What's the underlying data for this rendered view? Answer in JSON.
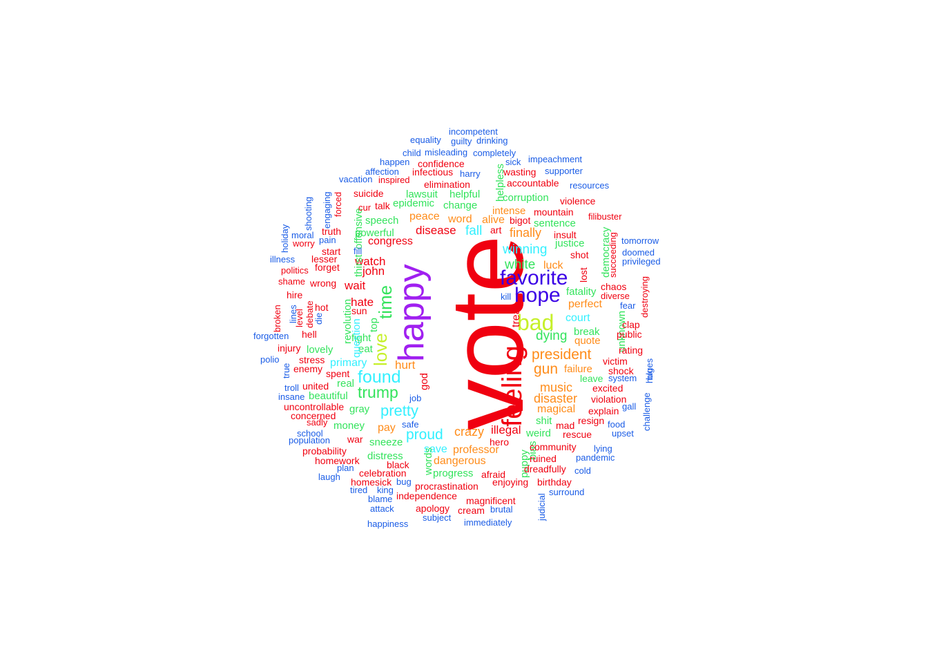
{
  "palette": {
    "red": "#f00010",
    "blue": "#1a5ce6",
    "green": "#33e35c",
    "orange": "#ff8c1a",
    "cyan": "#33f0ff",
    "purple": "#a020f0",
    "indigo": "#3a00e6",
    "yellow": "#c6f02a"
  },
  "words": [
    {
      "text": "vote",
      "color": "red"
    },
    {
      "text": "happy",
      "color": "purple"
    },
    {
      "text": "feeling",
      "color": "red"
    },
    {
      "text": "favorite",
      "color": "indigo"
    },
    {
      "text": "hope",
      "color": "indigo"
    },
    {
      "text": "bad",
      "color": "yellow"
    },
    {
      "text": "love",
      "color": "yellow"
    },
    {
      "text": "time",
      "color": "green"
    },
    {
      "text": "found",
      "color": "cyan"
    },
    {
      "text": "trump",
      "color": "green"
    },
    {
      "text": "pretty",
      "color": "cyan"
    },
    {
      "text": "proud",
      "color": "cyan"
    },
    {
      "text": "president",
      "color": "orange"
    },
    {
      "text": "gun",
      "color": "orange"
    },
    {
      "text": "winning",
      "color": "cyan"
    },
    {
      "text": "white",
      "color": "green"
    },
    {
      "text": "dying",
      "color": "green"
    },
    {
      "text": "music",
      "color": "orange"
    },
    {
      "text": "disaster",
      "color": "orange"
    },
    {
      "text": "crazy",
      "color": "orange"
    },
    {
      "text": "illegal",
      "color": "red"
    },
    {
      "text": "finally",
      "color": "orange"
    },
    {
      "text": "fall",
      "color": "cyan"
    },
    {
      "text": "disease",
      "color": "red"
    },
    {
      "text": "congress",
      "color": "red"
    },
    {
      "text": "watch",
      "color": "red"
    },
    {
      "text": "john",
      "color": "red"
    },
    {
      "text": "wait",
      "color": "red"
    },
    {
      "text": "hate",
      "color": "red"
    },
    {
      "text": "hurt",
      "color": "orange"
    },
    {
      "text": "court",
      "color": "cyan"
    },
    {
      "text": "perfect",
      "color": "orange"
    },
    {
      "text": "magical",
      "color": "orange"
    },
    {
      "text": "professor",
      "color": "orange"
    },
    {
      "text": "dangerous",
      "color": "orange"
    },
    {
      "text": "save",
      "color": "cyan"
    },
    {
      "text": "pay",
      "color": "orange"
    },
    {
      "text": "money",
      "color": "green"
    },
    {
      "text": "primary",
      "color": "cyan"
    },
    {
      "text": "powerful",
      "color": "green"
    },
    {
      "text": "speech",
      "color": "green"
    },
    {
      "text": "peace",
      "color": "orange"
    },
    {
      "text": "word",
      "color": "orange"
    },
    {
      "text": "alive",
      "color": "orange"
    },
    {
      "text": "intense",
      "color": "orange"
    },
    {
      "text": "epidemic",
      "color": "green"
    },
    {
      "text": "change",
      "color": "green"
    },
    {
      "text": "helpful",
      "color": "green"
    },
    {
      "text": "lawsuit",
      "color": "green"
    },
    {
      "text": "corruption",
      "color": "green"
    },
    {
      "text": "sentence",
      "color": "green"
    },
    {
      "text": "justice",
      "color": "green"
    },
    {
      "text": "luck",
      "color": "orange"
    },
    {
      "text": "fatality",
      "color": "green"
    },
    {
      "text": "quote",
      "color": "orange"
    },
    {
      "text": "failure",
      "color": "orange"
    },
    {
      "text": "break",
      "color": "green"
    },
    {
      "text": "leave",
      "color": "green"
    },
    {
      "text": "weird",
      "color": "green"
    },
    {
      "text": "shit",
      "color": "green"
    },
    {
      "text": "progress",
      "color": "green"
    },
    {
      "text": "distress",
      "color": "green"
    },
    {
      "text": "sneeze",
      "color": "green"
    },
    {
      "text": "gray",
      "color": "green"
    },
    {
      "text": "real",
      "color": "green"
    },
    {
      "text": "beautiful",
      "color": "green"
    },
    {
      "text": "lovely",
      "color": "green"
    },
    {
      "text": "fight",
      "color": "green"
    },
    {
      "text": "eat",
      "color": "green"
    },
    {
      "text": "question",
      "color": "cyan"
    },
    {
      "text": "revolution",
      "color": "green"
    },
    {
      "text": "top",
      "color": "green"
    },
    {
      "text": "offensive",
      "color": "green"
    },
    {
      "text": "thirst",
      "color": "green"
    },
    {
      "text": "helpless",
      "color": "green"
    },
    {
      "text": "democracy",
      "color": "green"
    },
    {
      "text": "unknown",
      "color": "green"
    },
    {
      "text": "puppy",
      "color": "green"
    },
    {
      "text": "words",
      "color": "green"
    },
    {
      "text": "bias",
      "color": "green"
    },
    {
      "text": "god",
      "color": "red"
    },
    {
      "text": "treat",
      "color": "red"
    },
    {
      "text": "incompetent",
      "color": "blue"
    },
    {
      "text": "equality",
      "color": "blue"
    },
    {
      "text": "guilty",
      "color": "blue"
    },
    {
      "text": "drinking",
      "color": "blue"
    },
    {
      "text": "child",
      "color": "blue"
    },
    {
      "text": "misleading",
      "color": "blue"
    },
    {
      "text": "completely",
      "color": "blue"
    },
    {
      "text": "happen",
      "color": "blue"
    },
    {
      "text": "confidence",
      "color": "red"
    },
    {
      "text": "sick",
      "color": "blue"
    },
    {
      "text": "impeachment",
      "color": "blue"
    },
    {
      "text": "affection",
      "color": "blue"
    },
    {
      "text": "infectious",
      "color": "red"
    },
    {
      "text": "harry",
      "color": "blue"
    },
    {
      "text": "wasting",
      "color": "red"
    },
    {
      "text": "supporter",
      "color": "blue"
    },
    {
      "text": "vacation",
      "color": "blue"
    },
    {
      "text": "inspired",
      "color": "red"
    },
    {
      "text": "elimination",
      "color": "red"
    },
    {
      "text": "accountable",
      "color": "red"
    },
    {
      "text": "resources",
      "color": "blue"
    },
    {
      "text": "suicide",
      "color": "red"
    },
    {
      "text": "violence",
      "color": "red"
    },
    {
      "text": "cur",
      "color": "red"
    },
    {
      "text": "talk",
      "color": "red"
    },
    {
      "text": "mountain",
      "color": "red"
    },
    {
      "text": "bigot",
      "color": "red"
    },
    {
      "text": "filibuster",
      "color": "red"
    },
    {
      "text": "art",
      "color": "red"
    },
    {
      "text": "insult",
      "color": "red"
    },
    {
      "text": "truth",
      "color": "red"
    },
    {
      "text": "pain",
      "color": "blue"
    },
    {
      "text": "moral",
      "color": "blue"
    },
    {
      "text": "worry",
      "color": "red"
    },
    {
      "text": "tomorrow",
      "color": "blue"
    },
    {
      "text": "start",
      "color": "red"
    },
    {
      "text": "fill",
      "color": "blue"
    },
    {
      "text": "shot",
      "color": "red"
    },
    {
      "text": "doomed",
      "color": "blue"
    },
    {
      "text": "illness",
      "color": "blue"
    },
    {
      "text": "lesser",
      "color": "red"
    },
    {
      "text": "privileged",
      "color": "blue"
    },
    {
      "text": "politics",
      "color": "red"
    },
    {
      "text": "forget",
      "color": "red"
    },
    {
      "text": "shame",
      "color": "red"
    },
    {
      "text": "wrong",
      "color": "red"
    },
    {
      "text": "chaos",
      "color": "red"
    },
    {
      "text": "diverse",
      "color": "red"
    },
    {
      "text": "hire",
      "color": "red"
    },
    {
      "text": "hot",
      "color": "red"
    },
    {
      "text": "kill",
      "color": "blue"
    },
    {
      "text": "fear",
      "color": "blue"
    },
    {
      "text": "sun",
      "color": "red"
    },
    {
      "text": "hell",
      "color": "red"
    },
    {
      "text": "clap",
      "color": "red"
    },
    {
      "text": "forgotten",
      "color": "blue"
    },
    {
      "text": "public",
      "color": "red"
    },
    {
      "text": "injury",
      "color": "red"
    },
    {
      "text": "rating",
      "color": "red"
    },
    {
      "text": "polio",
      "color": "blue"
    },
    {
      "text": "stress",
      "color": "red"
    },
    {
      "text": "victim",
      "color": "red"
    },
    {
      "text": "enemy",
      "color": "red"
    },
    {
      "text": "shock",
      "color": "red"
    },
    {
      "text": "spent",
      "color": "red"
    },
    {
      "text": "system",
      "color": "blue"
    },
    {
      "text": "troll",
      "color": "blue"
    },
    {
      "text": "united",
      "color": "red"
    },
    {
      "text": "excited",
      "color": "red"
    },
    {
      "text": "insane",
      "color": "blue"
    },
    {
      "text": "job",
      "color": "blue"
    },
    {
      "text": "violation",
      "color": "red"
    },
    {
      "text": "uncontrollable",
      "color": "red"
    },
    {
      "text": "gall",
      "color": "blue"
    },
    {
      "text": "explain",
      "color": "red"
    },
    {
      "text": "concerned",
      "color": "red"
    },
    {
      "text": "resign",
      "color": "red"
    },
    {
      "text": "sadly",
      "color": "red"
    },
    {
      "text": "safe",
      "color": "blue"
    },
    {
      "text": "mad",
      "color": "red"
    },
    {
      "text": "food",
      "color": "blue"
    },
    {
      "text": "school",
      "color": "blue"
    },
    {
      "text": "rescue",
      "color": "red"
    },
    {
      "text": "upset",
      "color": "blue"
    },
    {
      "text": "population",
      "color": "blue"
    },
    {
      "text": "war",
      "color": "red"
    },
    {
      "text": "hero",
      "color": "red"
    },
    {
      "text": "community",
      "color": "red"
    },
    {
      "text": "probability",
      "color": "red"
    },
    {
      "text": "lying",
      "color": "blue"
    },
    {
      "text": "homework",
      "color": "red"
    },
    {
      "text": "ruined",
      "color": "red"
    },
    {
      "text": "pandemic",
      "color": "blue"
    },
    {
      "text": "black",
      "color": "red"
    },
    {
      "text": "plan",
      "color": "blue"
    },
    {
      "text": "dreadfully",
      "color": "red"
    },
    {
      "text": "celebration",
      "color": "red"
    },
    {
      "text": "afraid",
      "color": "red"
    },
    {
      "text": "cold",
      "color": "blue"
    },
    {
      "text": "laugh",
      "color": "blue"
    },
    {
      "text": "homesick",
      "color": "red"
    },
    {
      "text": "bug",
      "color": "blue"
    },
    {
      "text": "enjoying",
      "color": "red"
    },
    {
      "text": "birthday",
      "color": "red"
    },
    {
      "text": "procrastination",
      "color": "red"
    },
    {
      "text": "tired",
      "color": "blue"
    },
    {
      "text": "king",
      "color": "blue"
    },
    {
      "text": "surround",
      "color": "blue"
    },
    {
      "text": "independence",
      "color": "red"
    },
    {
      "text": "blame",
      "color": "blue"
    },
    {
      "text": "magnificent",
      "color": "red"
    },
    {
      "text": "attack",
      "color": "blue"
    },
    {
      "text": "apology",
      "color": "red"
    },
    {
      "text": "cream",
      "color": "red"
    },
    {
      "text": "brutal",
      "color": "blue"
    },
    {
      "text": "subject",
      "color": "blue"
    },
    {
      "text": "happiness",
      "color": "blue"
    },
    {
      "text": "immediately",
      "color": "blue"
    },
    {
      "text": "holiday",
      "color": "blue"
    },
    {
      "text": "shooting",
      "color": "blue"
    },
    {
      "text": "engaging",
      "color": "blue"
    },
    {
      "text": "forced",
      "color": "red"
    },
    {
      "text": "succeeding",
      "color": "red"
    },
    {
      "text": "lost",
      "color": "red"
    },
    {
      "text": "destroying",
      "color": "red"
    },
    {
      "text": "broken",
      "color": "red"
    },
    {
      "text": "lines",
      "color": "blue"
    },
    {
      "text": "level",
      "color": "red"
    },
    {
      "text": "debate",
      "color": "red"
    },
    {
      "text": "die",
      "color": "blue"
    },
    {
      "text": "true",
      "color": "blue"
    },
    {
      "text": "hug",
      "color": "blue"
    },
    {
      "text": "blues",
      "color": "blue"
    },
    {
      "text": "challenge",
      "color": "blue"
    },
    {
      "text": "judicial",
      "color": "blue"
    }
  ]
}
